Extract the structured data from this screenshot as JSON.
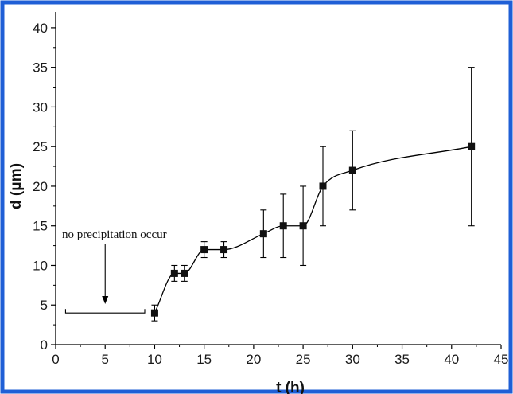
{
  "chart_data": {
    "type": "scatter",
    "title": "",
    "xlabel": "t (h)",
    "ylabel": "d (μm)",
    "xlim": [
      0,
      45
    ],
    "ylim": [
      0,
      42
    ],
    "x_ticks": [
      "0",
      "5",
      "10",
      "15",
      "20",
      "25",
      "30",
      "35",
      "40",
      "45"
    ],
    "y_ticks": [
      "0",
      "5",
      "10",
      "15",
      "20",
      "25",
      "30",
      "35",
      "40"
    ],
    "grid": false,
    "legend": "none",
    "series": [
      {
        "x": [
          10,
          12,
          13,
          15,
          17,
          21,
          23,
          25,
          27,
          30,
          42
        ],
        "y": [
          4,
          9,
          9,
          12,
          12,
          14,
          15,
          15,
          20,
          22,
          25
        ],
        "error_low": [
          3,
          8,
          8,
          11,
          11,
          11,
          11,
          10,
          15,
          17,
          15
        ],
        "error_high": [
          5,
          10,
          10,
          13,
          13,
          17,
          19,
          20,
          25,
          27,
          35
        ],
        "marker": "square",
        "fitted_curve": true
      }
    ],
    "annotations": [
      {
        "text": "no precipitation occur",
        "bracket_x": [
          1,
          9
        ],
        "bracket_y": 4,
        "arrow_x": 5
      }
    ]
  },
  "colors": {
    "frame": "#1f5fd6",
    "axis": "#000000",
    "marker": "#111111"
  }
}
